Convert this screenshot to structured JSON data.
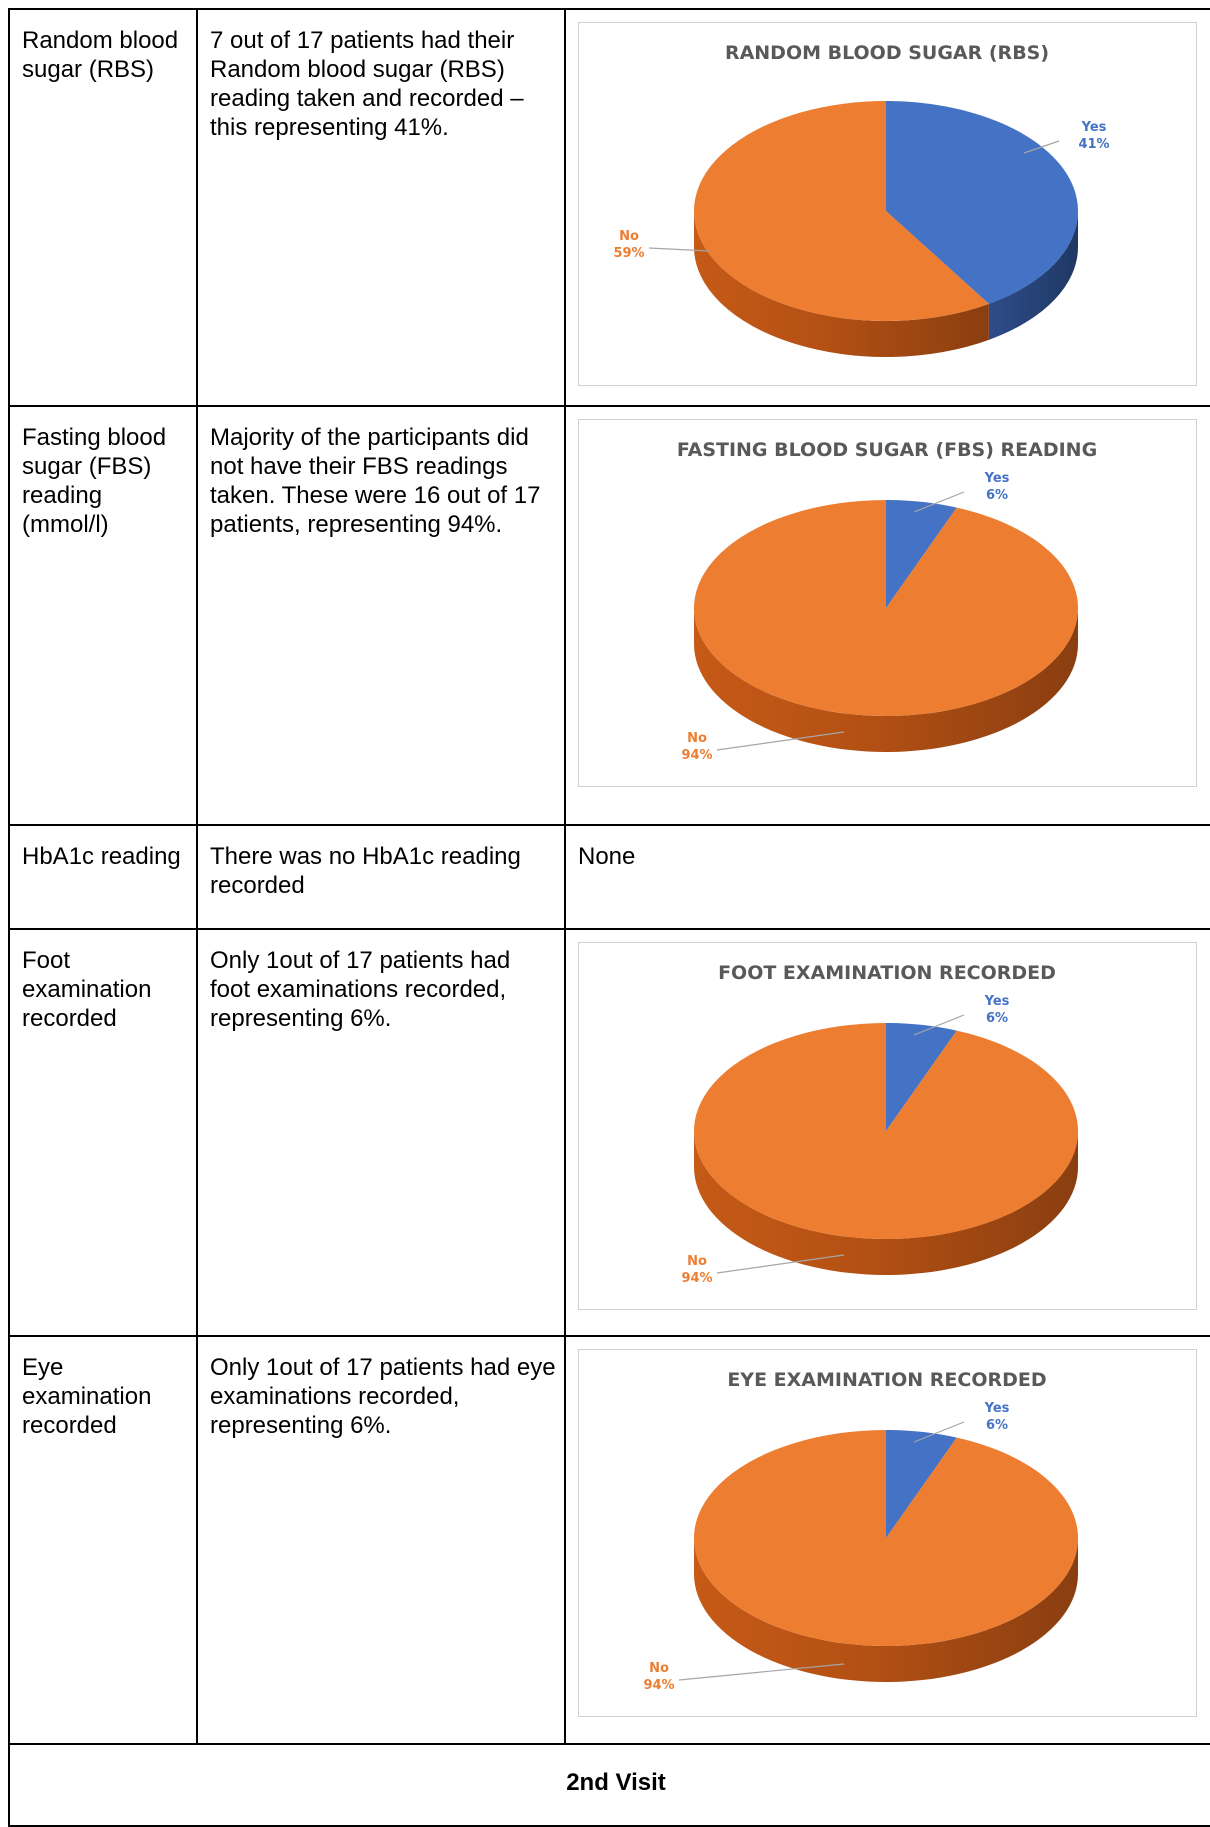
{
  "rows": [
    {
      "label": "Random blood sugar (RBS)",
      "description": "7 out of 17 patients had their Random blood sugar (RBS) reading taken and recorded – this representing 41%.",
      "chart_title": "RANDOM BLOOD SUGAR (RBS)"
    },
    {
      "label": " Fasting blood sugar (FBS) reading (mmol/l)",
      "description": " Majority of the participants did not have their FBS readings taken. These were 16 out of 17 patients, representing 94%.",
      "chart_title": "FASTING BLOOD SUGAR (FBS) READING"
    },
    {
      "label": "HbA1c reading",
      "description": "There was no HbA1c reading recorded",
      "result": "None"
    },
    {
      "label": "Foot examination recorded",
      "description": "Only 1out of 17 patients had foot examinations recorded, representing 6%.",
      "chart_title": "FOOT EXAMINATION RECORDED"
    },
    {
      "label": "Eye examination recorded",
      "description": "Only 1out of 17 patients had eye examinations recorded, representing 6%.",
      "chart_title": "EYE EXAMINATION RECORDED"
    }
  ],
  "footer": {
    "visit_label": "2nd Visit"
  },
  "colors": {
    "yes": "#4472C4",
    "no": "#ED7D31",
    "yes_dark": "#1F3864",
    "no_dark": "#8A3E10"
  },
  "chart_data": [
    {
      "type": "pie",
      "title": "RANDOM BLOOD SUGAR (RBS)",
      "categories": [
        "Yes",
        "No"
      ],
      "values": [
        41,
        59
      ],
      "labels": [
        "41%",
        "59%"
      ]
    },
    {
      "type": "pie",
      "title": "FASTING BLOOD SUGAR (FBS) READING",
      "categories": [
        "Yes",
        "No"
      ],
      "values": [
        6,
        94
      ],
      "labels": [
        "6%",
        "94%"
      ]
    },
    {
      "type": "pie",
      "title": "FOOT EXAMINATION RECORDED",
      "categories": [
        "Yes",
        "No"
      ],
      "values": [
        6,
        94
      ],
      "labels": [
        "6%",
        "94%"
      ]
    },
    {
      "type": "pie",
      "title": "EYE EXAMINATION RECORDED",
      "categories": [
        "Yes",
        "No"
      ],
      "values": [
        6,
        94
      ],
      "labels": [
        "6%",
        "94%"
      ]
    }
  ]
}
